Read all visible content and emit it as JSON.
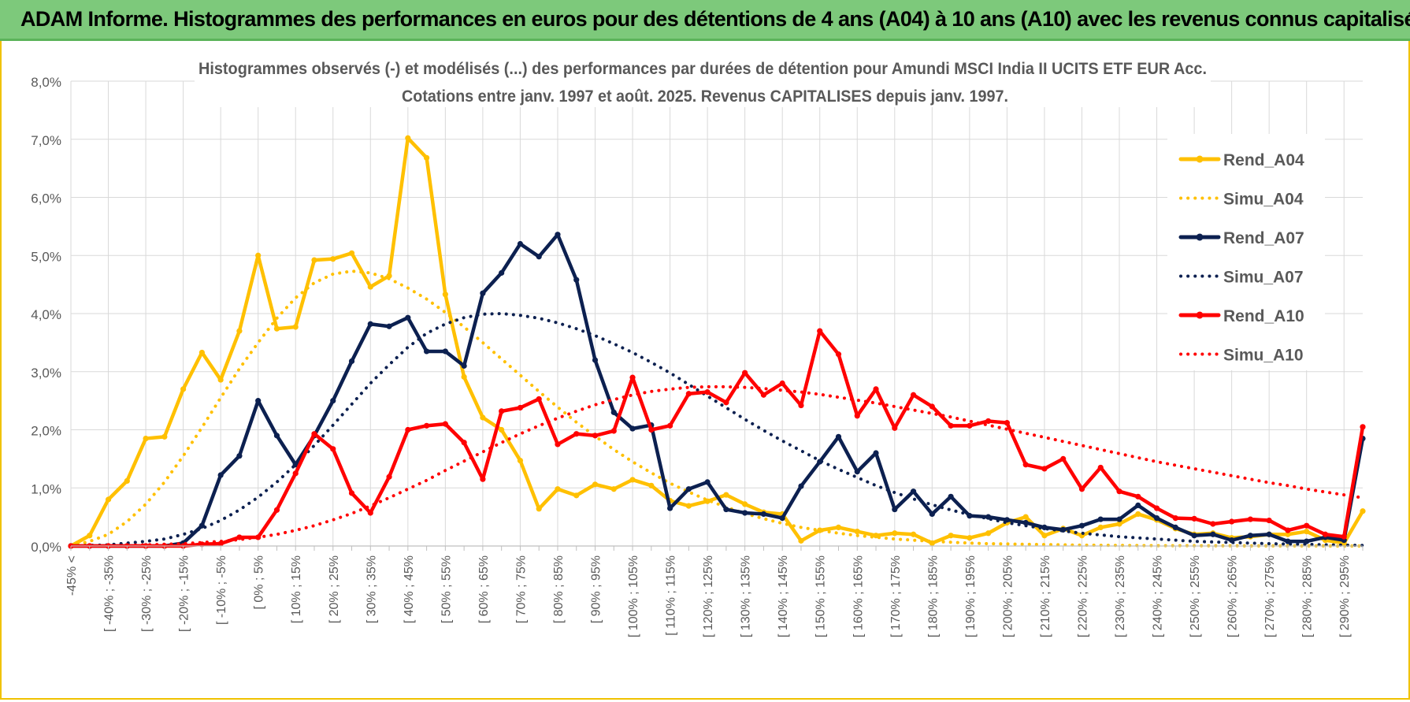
{
  "banner": {
    "title": "ADAM Informe. Histogrammes des performances en euros pour des détentions de 4 ans (A04) à 10 ans (A10) avec les revenus connus capitalisés"
  },
  "colors": {
    "banner": "#7dc97b",
    "a04": "#ffc000",
    "a07": "#0c2050",
    "a10": "#ff0000",
    "grid": "#d9d9d9",
    "frame": "#f0c200"
  },
  "chart_data": {
    "type": "line",
    "title": "Histogrammes observés (-) et modélisés (...) des performances par durées de détention pour Amundi MSCI India II UCITS ETF EUR Acc.",
    "subtitle": "Cotations entre janv. 1997 et août. 2025. Revenus CAPITALISES depuis janv. 1997.",
    "ylim": [
      0,
      8
    ],
    "y_ticks": [
      "0,0%",
      "1,0%",
      "2,0%",
      "3,0%",
      "4,0%",
      "5,0%",
      "6,0%",
      "7,0%",
      "8,0%"
    ],
    "grid": true,
    "legend_position": "right",
    "x_tick_labels": [
      "-45% <",
      "[ -40% ; -35%",
      "[ -30% ; -25%",
      "[ -20% ; -15%",
      "[ -10% ; -5%",
      "[ 0% ; 5%",
      "[ 10% ; 15%",
      "[ 20% ; 25%",
      "[ 30% ; 35%",
      "[ 40% ; 45%",
      "[ 50% ; 55%",
      "[ 60% ; 65%",
      "[ 70% ; 75%",
      "[ 80% ; 85%",
      "[ 90% ; 95%",
      "[ 100% ; 105%",
      "[ 110% ; 115%",
      "[ 120% ; 125%",
      "[ 130% ; 135%",
      "[ 140% ; 145%",
      "[ 150% ; 155%",
      "[ 160% ; 165%",
      "[ 170% ; 175%",
      "[ 180% ; 185%",
      "[ 190% ; 195%",
      "[ 200% ; 205%",
      "[ 210% ; 215%",
      "[ 220% ; 225%",
      "[ 230% ; 235%",
      "[ 240% ; 245%",
      "[ 250% ; 255%",
      "[ 260% ; 265%",
      "[ 270% ; 275%",
      "[ 280% ; 285%",
      "[ 290% ; 295%"
    ],
    "n_categories": 70,
    "series": [
      {
        "name": "Rend_A04",
        "style": "solid",
        "color": "#ffc000",
        "values": [
          0.0,
          0.18,
          0.8,
          1.12,
          1.85,
          1.88,
          2.7,
          3.33,
          2.86,
          3.7,
          5.0,
          3.74,
          3.77,
          4.92,
          4.94,
          5.04,
          4.46,
          4.65,
          7.02,
          6.68,
          4.33,
          2.91,
          2.21,
          2.0,
          1.47,
          0.64,
          0.98,
          0.87,
          1.06,
          0.98,
          1.14,
          1.04,
          0.78,
          0.69,
          0.77,
          0.88,
          0.72,
          0.58,
          0.55,
          0.09,
          0.27,
          0.32,
          0.25,
          0.18,
          0.22,
          0.2,
          0.05,
          0.18,
          0.14,
          0.22,
          0.4,
          0.5,
          0.18,
          0.3,
          0.18,
          0.32,
          0.38,
          0.55,
          0.45,
          0.3,
          0.2,
          0.22,
          0.14,
          0.16,
          0.2,
          0.2,
          0.25,
          0.1,
          0.05,
          0.6
        ]
      },
      {
        "name": "Simu_A04",
        "style": "dotted",
        "color": "#ffc000",
        "values": [
          0.0,
          0.08,
          0.2,
          0.42,
          0.72,
          1.1,
          1.55,
          2.04,
          2.55,
          3.05,
          3.5,
          3.92,
          4.27,
          4.53,
          4.68,
          4.73,
          4.7,
          4.6,
          4.44,
          4.25,
          4.02,
          3.77,
          3.5,
          3.22,
          2.94,
          2.66,
          2.39,
          2.13,
          1.89,
          1.66,
          1.45,
          1.26,
          1.08,
          0.93,
          0.79,
          0.67,
          0.56,
          0.47,
          0.39,
          0.32,
          0.27,
          0.22,
          0.18,
          0.15,
          0.12,
          0.1,
          0.08,
          0.065,
          0.05,
          0.04,
          0.035,
          0.03,
          0.025,
          0.02,
          0.015,
          0.012,
          0.01,
          0.008,
          0.006,
          0.005,
          0.004,
          0.003,
          0.003,
          0.002,
          0.002,
          0.001,
          0.001,
          0.001,
          0.0,
          0.0
        ]
      },
      {
        "name": "Rend_A07",
        "style": "solid",
        "color": "#0c2050",
        "values": [
          0.0,
          0.0,
          0.0,
          0.0,
          0.0,
          0.0,
          0.05,
          0.35,
          1.22,
          1.55,
          2.5,
          1.9,
          1.4,
          1.9,
          2.5,
          3.18,
          3.82,
          3.78,
          3.93,
          3.35,
          3.35,
          3.1,
          4.35,
          4.7,
          5.2,
          4.98,
          5.36,
          4.58,
          3.2,
          2.3,
          2.02,
          2.08,
          0.65,
          0.98,
          1.1,
          0.63,
          0.57,
          0.55,
          0.48,
          1.03,
          1.45,
          1.88,
          1.28,
          1.6,
          0.63,
          0.94,
          0.55,
          0.85,
          0.52,
          0.5,
          0.45,
          0.4,
          0.32,
          0.28,
          0.35,
          0.46,
          0.46,
          0.7,
          0.48,
          0.32,
          0.18,
          0.2,
          0.1,
          0.18,
          0.2,
          0.08,
          0.08,
          0.15,
          0.1,
          1.85
        ]
      },
      {
        "name": "Simu_A07",
        "style": "dotted",
        "color": "#0c2050",
        "values": [
          0.0,
          0.01,
          0.02,
          0.05,
          0.08,
          0.12,
          0.2,
          0.3,
          0.44,
          0.62,
          0.84,
          1.1,
          1.4,
          1.73,
          2.08,
          2.44,
          2.8,
          3.12,
          3.42,
          3.66,
          3.82,
          3.93,
          3.99,
          4.0,
          3.97,
          3.92,
          3.84,
          3.74,
          3.62,
          3.48,
          3.33,
          3.16,
          2.98,
          2.78,
          2.58,
          2.38,
          2.18,
          1.99,
          1.81,
          1.64,
          1.47,
          1.32,
          1.18,
          1.04,
          0.92,
          0.81,
          0.71,
          0.62,
          0.54,
          0.47,
          0.4,
          0.35,
          0.3,
          0.26,
          0.22,
          0.19,
          0.16,
          0.14,
          0.12,
          0.1,
          0.08,
          0.07,
          0.06,
          0.05,
          0.04,
          0.035,
          0.03,
          0.02,
          0.015,
          0.01
        ]
      },
      {
        "name": "Rend_A10",
        "style": "solid",
        "color": "#ff0000",
        "values": [
          0.0,
          0.0,
          0.0,
          0.0,
          0.0,
          0.0,
          0.0,
          0.03,
          0.04,
          0.15,
          0.15,
          0.62,
          1.25,
          1.93,
          1.67,
          0.91,
          0.57,
          1.19,
          2.0,
          2.07,
          2.1,
          1.78,
          1.15,
          2.32,
          2.38,
          2.53,
          1.75,
          1.93,
          1.9,
          1.98,
          2.9,
          2.0,
          2.07,
          2.62,
          2.65,
          2.47,
          2.98,
          2.6,
          2.8,
          2.42,
          3.7,
          3.3,
          2.24,
          2.7,
          2.03,
          2.6,
          2.4,
          2.07,
          2.07,
          2.15,
          2.12,
          1.4,
          1.33,
          1.5,
          0.98,
          1.35,
          0.94,
          0.85,
          0.65,
          0.48,
          0.47,
          0.38,
          0.42,
          0.46,
          0.44,
          0.27,
          0.35,
          0.2,
          0.16,
          2.05
        ]
      },
      {
        "name": "Simu_A10",
        "style": "dotted",
        "color": "#ff0000",
        "values": [
          0.0,
          0.0,
          0.0,
          0.01,
          0.02,
          0.03,
          0.04,
          0.06,
          0.08,
          0.11,
          0.15,
          0.2,
          0.27,
          0.35,
          0.45,
          0.56,
          0.69,
          0.83,
          0.98,
          1.13,
          1.3,
          1.46,
          1.62,
          1.78,
          1.93,
          2.07,
          2.2,
          2.32,
          2.43,
          2.52,
          2.6,
          2.66,
          2.7,
          2.73,
          2.74,
          2.74,
          2.73,
          2.71,
          2.68,
          2.65,
          2.61,
          2.56,
          2.51,
          2.46,
          2.4,
          2.34,
          2.28,
          2.22,
          2.15,
          2.08,
          2.01,
          1.94,
          1.87,
          1.8,
          1.73,
          1.66,
          1.59,
          1.52,
          1.45,
          1.39,
          1.33,
          1.27,
          1.21,
          1.15,
          1.09,
          1.04,
          0.98,
          0.93,
          0.88,
          0.83
        ]
      }
    ]
  }
}
